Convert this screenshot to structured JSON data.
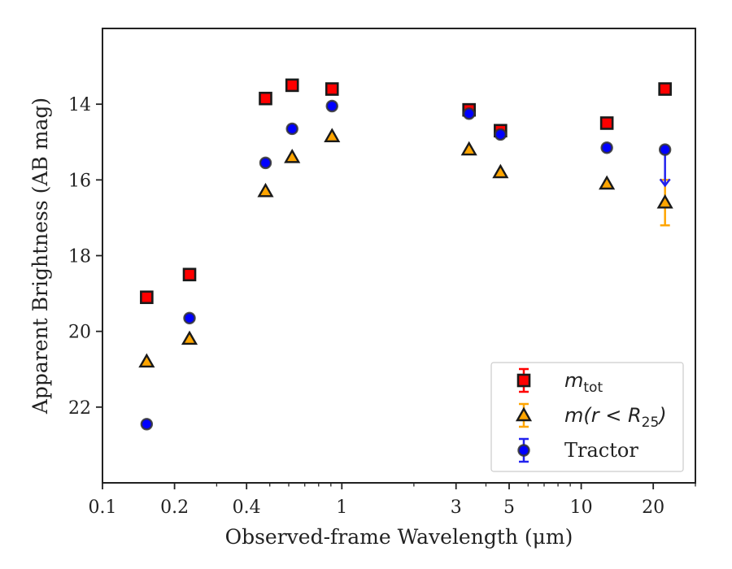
{
  "chart_data": {
    "type": "scatter",
    "xlabel": "Observed-frame Wavelength (μm)",
    "ylabel": "Apparent Brightness (AB mag)",
    "x_scale": "log",
    "xlim": [
      0.1,
      30
    ],
    "ylim": [
      24,
      12
    ],
    "y_inverted": true,
    "x_ticks": [
      {
        "value": 0.1,
        "label": "0.1"
      },
      {
        "value": 0.2,
        "label": "0.2"
      },
      {
        "value": 0.4,
        "label": "0.4"
      },
      {
        "value": 1,
        "label": "1"
      },
      {
        "value": 3,
        "label": "3"
      },
      {
        "value": 5,
        "label": "5"
      },
      {
        "value": 10,
        "label": "10"
      },
      {
        "value": 20,
        "label": "20"
      }
    ],
    "y_ticks": [
      {
        "value": 14,
        "label": "14"
      },
      {
        "value": 16,
        "label": "16"
      },
      {
        "value": 18,
        "label": "18"
      },
      {
        "value": 20,
        "label": "20"
      },
      {
        "value": 22,
        "label": "22"
      }
    ],
    "grid": false,
    "legend_position": "bottom-right",
    "series": [
      {
        "name": "m_tot",
        "legend_label": {
          "main": "m",
          "sub": "tot"
        },
        "marker": "square",
        "color": "#ff0000",
        "edge_color": "#1a1a1a",
        "points": [
          {
            "x": 0.153,
            "y": 19.1
          },
          {
            "x": 0.231,
            "y": 18.5
          },
          {
            "x": 0.48,
            "y": 13.85
          },
          {
            "x": 0.62,
            "y": 13.5
          },
          {
            "x": 0.91,
            "y": 13.6
          },
          {
            "x": 3.4,
            "y": 14.15
          },
          {
            "x": 4.6,
            "y": 14.7
          },
          {
            "x": 12.8,
            "y": 14.5
          },
          {
            "x": 22.4,
            "y": 13.6
          }
        ]
      },
      {
        "name": "m(r < R_25)",
        "legend_label": {
          "main": "m(r < R",
          "sub": "25",
          "close": ")"
        },
        "marker": "triangle",
        "color": "#ffa500",
        "edge_color": "#1a1a1a",
        "points": [
          {
            "x": 0.153,
            "y": 20.8
          },
          {
            "x": 0.231,
            "y": 20.2
          },
          {
            "x": 0.48,
            "y": 16.3
          },
          {
            "x": 0.62,
            "y": 15.4
          },
          {
            "x": 0.91,
            "y": 14.85
          },
          {
            "x": 3.4,
            "y": 15.2
          },
          {
            "x": 4.6,
            "y": 15.8
          },
          {
            "x": 12.8,
            "y": 16.1
          },
          {
            "x": 22.4,
            "y": 16.6,
            "yerr": 0.6
          }
        ]
      },
      {
        "name": "Tractor",
        "legend_label": {
          "main": "Tractor"
        },
        "marker": "circle",
        "color": "#0000ff",
        "edge_color": "#333333",
        "points": [
          {
            "x": 0.153,
            "y": 22.45
          },
          {
            "x": 0.231,
            "y": 19.65
          },
          {
            "x": 0.48,
            "y": 15.55
          },
          {
            "x": 0.62,
            "y": 14.65
          },
          {
            "x": 0.91,
            "y": 14.05
          },
          {
            "x": 3.4,
            "y": 14.25
          },
          {
            "x": 4.6,
            "y": 14.8
          },
          {
            "x": 12.8,
            "y": 15.15
          },
          {
            "x": 22.4,
            "y": 15.2,
            "upper_limit": true
          }
        ]
      }
    ]
  }
}
